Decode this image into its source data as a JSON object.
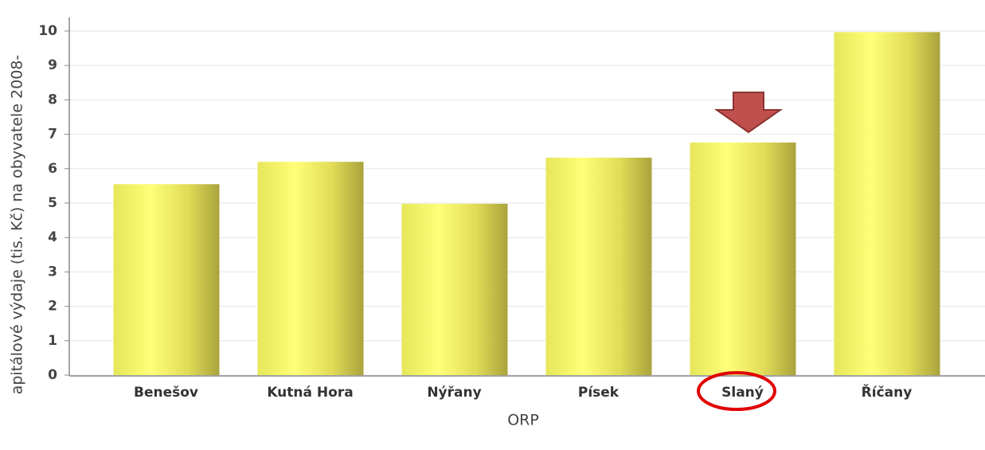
{
  "chart_data": {
    "type": "bar",
    "y_axis_label": "apitálové výdaje (tis. Kč) na obyvatele 2008-",
    "x_axis_label": "ORP",
    "categories": [
      "Benešov",
      "Kutná Hora",
      "Nýřany",
      "Písek",
      "Slaný",
      "Říčany"
    ],
    "values": [
      5.55,
      6.2,
      4.98,
      6.32,
      6.76,
      9.97
    ],
    "color": "#f4f46a",
    "ylim": [
      0,
      10
    ],
    "yticks": [
      0,
      1,
      2,
      3,
      4,
      5,
      6,
      7,
      8,
      9,
      10
    ],
    "grid": true
  }
}
